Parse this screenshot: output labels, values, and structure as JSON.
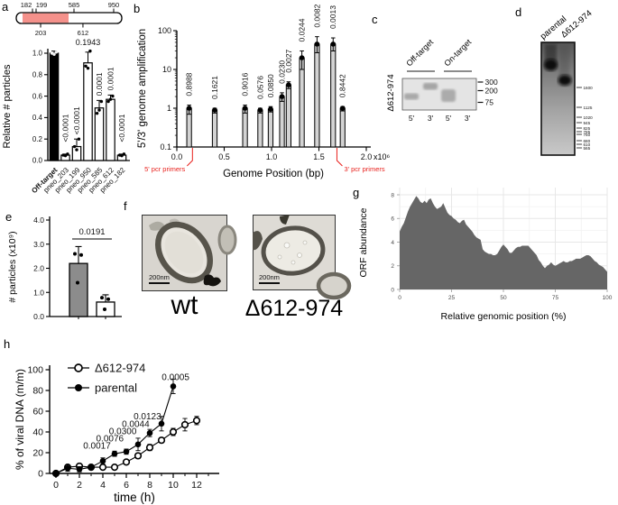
{
  "panel_labels": {
    "a": "a",
    "b": "b",
    "c": "c",
    "d": "d",
    "e": "e",
    "f": "f",
    "g": "g",
    "h": "h"
  },
  "panels": {
    "a_schematic": {
      "top_ticks": [
        {
          "label": "182",
          "x": 0.154
        },
        {
          "label": "199",
          "x": 0.188
        },
        {
          "label": "585",
          "x": 0.547
        },
        {
          "label": "950",
          "x": 0.923
        }
      ],
      "bottom_ticks": [
        {
          "label": "203",
          "x": 0.231
        },
        {
          "label": "612",
          "x": 0.632
        }
      ],
      "highlight_color": "#f4918b",
      "highlight_range": [
        0.06,
        0.496
      ]
    },
    "c": {
      "row_label": "Δ612-974",
      "groups": [
        "Off-target",
        "On-target"
      ],
      "lanes": [
        "5'",
        "3'",
        "5'",
        "3'"
      ],
      "size_markers": [
        "300",
        "200",
        "75"
      ]
    },
    "d": {
      "lanes": [
        "parental",
        "Δ612-974"
      ],
      "ladder": [
        "1600",
        "1125",
        "1020",
        "945",
        "825",
        "785",
        "750",
        "680",
        "610",
        "565"
      ]
    },
    "f": {
      "images": [
        {
          "label": "wt",
          "scale_bar": "200nm"
        },
        {
          "label": "Δ612-974",
          "scale_bar": "200nm"
        }
      ]
    }
  },
  "chart_data": [
    {
      "panel": "a",
      "type": "bar",
      "ylabel": "Relative # particles",
      "ylim": [
        0,
        1.05
      ],
      "yticks": [
        0,
        0.2,
        0.4,
        0.6,
        0.8,
        1.0
      ],
      "categories": [
        "Off-target",
        "pneo_203",
        "pneo_199",
        "pneo_950",
        "pneo_585",
        "pneo_612",
        "pneo_182"
      ],
      "values": [
        1.0,
        0.05,
        0.13,
        0.91,
        0.49,
        0.57,
        0.05
      ],
      "errors": [
        0.02,
        0.01,
        0.07,
        0.1,
        0.07,
        0.04,
        0.01
      ],
      "dots": [
        [
          1.0,
          1.01,
          0.99
        ],
        [
          0.05,
          0.06,
          0.045
        ],
        [
          0.13,
          0.2,
          0.1
        ],
        [
          0.88,
          1.02,
          0.86
        ],
        [
          0.44,
          0.55,
          0.47
        ],
        [
          0.55,
          0.6,
          0.57
        ],
        [
          0.05,
          0.06,
          0.045
        ]
      ],
      "p_values": [
        "",
        "<0.0001",
        "<0.0001",
        "0.1943",
        "0.0001",
        "0.0001",
        "<0.0001"
      ],
      "p_orientation": [
        "",
        "v",
        "v",
        "h",
        "v",
        "v",
        "v"
      ],
      "bar_fills": [
        "#000000",
        "#ffffff",
        "#ffffff",
        "#ffffff",
        "#ffffff",
        "#ffffff",
        "#ffffff"
      ]
    },
    {
      "panel": "b",
      "type": "bar",
      "yscale": "log",
      "ylabel": "5'/3' genome amplification",
      "xlabel": "Genome Position (bp)",
      "x_axis_multiplier": "x10⁶",
      "xlim": [
        0,
        2.0
      ],
      "xticks": [
        "0.0",
        "0.5",
        "1.0",
        "1.5",
        "2.0"
      ],
      "yticks": [
        "0.1",
        "1",
        "10",
        "100"
      ],
      "x": [
        0.13,
        0.4,
        0.72,
        0.88,
        0.99,
        1.11,
        1.18,
        1.32,
        1.48,
        1.65,
        1.75
      ],
      "values": [
        1.0,
        0.9,
        1.0,
        0.9,
        0.95,
        2.0,
        4.0,
        20,
        45,
        45,
        1.0
      ],
      "errors_lo": [
        0.3,
        0.15,
        0.25,
        0.15,
        0.15,
        0.5,
        0.8,
        10,
        18,
        15,
        0.15
      ],
      "errors_hi": [
        0.2,
        0.1,
        0.2,
        0.1,
        0.15,
        0.5,
        0.8,
        10,
        25,
        20,
        0.1
      ],
      "p_values": [
        "0.8988",
        "0.1621",
        "0.9016",
        "0.0576",
        "0.0850",
        "0.0230",
        "0.0027",
        "0.0244",
        "0.0082",
        "0.0013",
        "0.8442"
      ],
      "bar_fill": "#d3d3d3",
      "annotation_5": {
        "text": "5' pcr primers",
        "x": 0.165,
        "color": "#e8211d"
      },
      "annotation_3": {
        "text": "3' pcr primers",
        "x": 1.69,
        "color": "#e8211d"
      }
    },
    {
      "panel": "e",
      "type": "bar",
      "ylabel": "# particles (x10⁹)",
      "yticks": [
        "0.0",
        "1.0",
        "2.0",
        "3.0",
        "4.0"
      ],
      "values": [
        2.2,
        0.6
      ],
      "errors": [
        0.7,
        0.3
      ],
      "dots": [
        [
          2.6,
          2.55,
          1.4
        ],
        [
          0.78,
          0.72,
          0.3
        ]
      ],
      "bar_fills": [
        "#8c8c8c",
        "#ffffff"
      ],
      "p_value": "0.0191"
    },
    {
      "panel": "g",
      "type": "area",
      "ylabel": "ORF abundance",
      "xlabel": "Relative genomic position (%)",
      "xticks": [
        0,
        25,
        50,
        75,
        100
      ],
      "yticks": [
        0,
        2,
        4,
        6,
        8
      ],
      "x_range": [
        0,
        100
      ],
      "ylim": [
        0,
        8
      ],
      "fill": "#666666",
      "values": [
        4.9,
        5.3,
        5.6,
        6.1,
        6.6,
        7.0,
        7.3,
        7.6,
        7.9,
        7.7,
        7.4,
        7.3,
        7.5,
        7.3,
        7.6,
        7.7,
        7.3,
        7.0,
        6.8,
        6.9,
        7.0,
        7.3,
        6.9,
        6.5,
        6.3,
        6.2,
        6.0,
        5.9,
        5.7,
        5.6,
        5.8,
        5.9,
        5.5,
        5.3,
        5.1,
        4.9,
        4.6,
        4.4,
        4.3,
        4.2,
        3.4,
        3.2,
        3.1,
        3.0,
        3.0,
        2.9,
        2.9,
        3.0,
        3.3,
        3.6,
        3.8,
        3.6,
        3.4,
        3.1,
        3.1,
        3.3,
        3.5,
        3.6,
        3.6,
        3.7,
        3.7,
        3.7,
        3.7,
        3.5,
        3.3,
        3.1,
        2.9,
        2.5,
        2.3,
        2.0,
        1.8,
        2.0,
        2.1,
        2.3,
        2.1,
        2.0,
        2.1,
        2.2,
        2.3,
        2.4,
        2.3,
        2.3,
        2.4,
        2.4,
        2.5,
        2.6,
        2.6,
        2.6,
        2.7,
        2.8,
        2.9,
        2.9,
        2.8,
        2.6,
        2.4,
        2.3,
        2.1,
        2.0,
        1.9,
        1.7,
        1.5
      ]
    },
    {
      "panel": "h",
      "type": "line",
      "ylabel": "% of viral DNA (m/m)",
      "xlabel": "time (h)",
      "xticks": [
        0,
        2,
        4,
        6,
        8,
        10,
        12
      ],
      "yticks": [
        0,
        20,
        40,
        60,
        80,
        100
      ],
      "series": [
        {
          "name": "Δ612-974",
          "marker": "open",
          "x": [
            0,
            1,
            2,
            3,
            4,
            5,
            6,
            7,
            8,
            9,
            10,
            11,
            12
          ],
          "values": [
            0,
            6,
            7,
            6,
            6,
            6,
            11,
            17,
            25,
            32,
            40,
            47,
            51
          ],
          "errors": [
            1,
            2,
            2,
            1.5,
            1.5,
            1.5,
            2,
            2.5,
            3,
            2.5,
            3.5,
            6,
            4
          ]
        },
        {
          "name": "parental",
          "marker": "filled",
          "x": [
            0,
            1,
            2,
            3,
            4,
            5,
            6,
            7,
            8,
            9,
            10
          ],
          "values": [
            0,
            5,
            4,
            6,
            12,
            19,
            21,
            28,
            39,
            48,
            84
          ],
          "errors": [
            1,
            3,
            2.5,
            1.5,
            3,
            2.5,
            2.5,
            6,
            3.5,
            7,
            7
          ]
        }
      ],
      "p_values": [
        {
          "text": "0.0017",
          "t": 3.5,
          "v": 24
        },
        {
          "text": "0.0076",
          "t": 4.6,
          "v": 31
        },
        {
          "text": "0.0300",
          "t": 5.7,
          "v": 38
        },
        {
          "text": "0.0044",
          "t": 6.8,
          "v": 45
        },
        {
          "text": "0.0123",
          "t": 7.8,
          "v": 52
        },
        {
          "text": "0.0005",
          "t": 10.2,
          "v": 90
        }
      ]
    }
  ]
}
